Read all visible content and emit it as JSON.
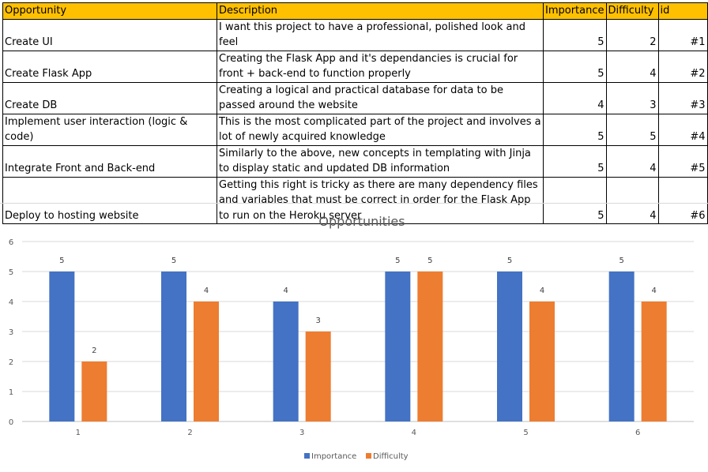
{
  "table": {
    "headers": [
      "Opportunity",
      "Description",
      "Importance",
      "Difficulty",
      "id"
    ],
    "rows": [
      {
        "opportunity": "Create UI",
        "description": "I want this project to have a professional, polished look and feel",
        "importance": "5",
        "difficulty": "2",
        "id": "#1"
      },
      {
        "opportunity": "Create Flask App",
        "description": "Creating the Flask App and it's dependancies is crucial for front + back-end to function properly",
        "importance": "5",
        "difficulty": "4",
        "id": "#2"
      },
      {
        "opportunity": "Create DB",
        "description": "Creating a logical and practical database for data to be passed around the website",
        "importance": "4",
        "difficulty": "3",
        "id": "#3"
      },
      {
        "opportunity": "Implement user interaction (logic & code)",
        "description": "This is the most complicated part of the project and involves a lot of newly acquired knowledge",
        "importance": "5",
        "difficulty": "5",
        "id": "#4"
      },
      {
        "opportunity": "Integrate Front and Back-end",
        "description": "Similarly to the above, new concepts in templating with Jinja to display static and updated DB information",
        "importance": "5",
        "difficulty": "4",
        "id": "#5"
      },
      {
        "opportunity": "Deploy to hosting website",
        "description": "Getting this right is tricky as there are many dependency files and variables that must be correct in order for the Flask App to run on the Heroku server",
        "importance": "5",
        "difficulty": "4",
        "id": "#6"
      }
    ]
  },
  "colors": {
    "header_fill": "#ffc000",
    "importance": "#4472c4",
    "difficulty": "#ed7d31",
    "gridline": "#d9d9d9"
  },
  "chart_data": {
    "type": "bar",
    "title": "Opportunities",
    "categories": [
      "1",
      "2",
      "3",
      "4",
      "5",
      "6"
    ],
    "series": [
      {
        "name": "Importance",
        "values": [
          5,
          5,
          4,
          5,
          5,
          5
        ],
        "color": "#4472c4"
      },
      {
        "name": "Difficulty",
        "values": [
          2,
          4,
          3,
          5,
          4,
          4
        ],
        "color": "#ed7d31"
      }
    ],
    "ylim": [
      0,
      6
    ],
    "yticks": [
      "0",
      "1",
      "2",
      "3",
      "4",
      "5",
      "6"
    ],
    "grid": true,
    "legend": "bottom",
    "data_labels": true
  }
}
